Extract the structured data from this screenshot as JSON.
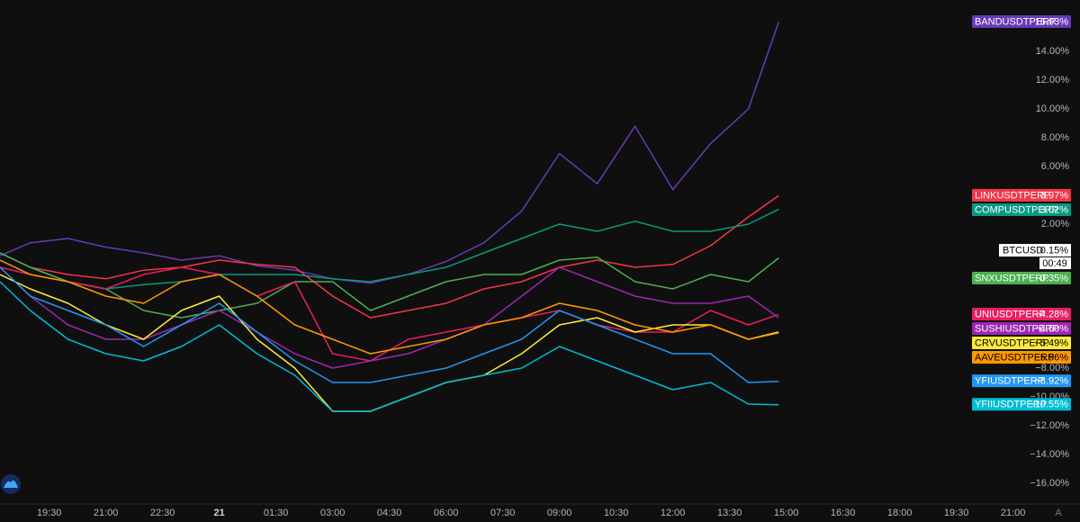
{
  "chart_data": {
    "type": "line",
    "x": [
      0.2,
      1,
      2,
      3,
      4,
      5,
      6,
      7,
      8,
      9,
      10,
      11,
      12,
      13,
      14,
      15,
      16,
      17,
      18,
      19,
      20,
      20.8
    ],
    "xlim": [
      0.2,
      28.77
    ],
    "ylim": [
      -17.44,
      17.56
    ],
    "xticks": [
      {
        "value": 1.5,
        "label": "19:30"
      },
      {
        "value": 3,
        "label": "21:00"
      },
      {
        "value": 4.5,
        "label": "22:30"
      },
      {
        "value": 6,
        "label": "21"
      },
      {
        "value": 7.5,
        "label": "01:30"
      },
      {
        "value": 9,
        "label": "03:00"
      },
      {
        "value": 10.5,
        "label": "04:30"
      },
      {
        "value": 12,
        "label": "06:00"
      },
      {
        "value": 13.5,
        "label": "07:30"
      },
      {
        "value": 15,
        "label": "09:00"
      },
      {
        "value": 16.5,
        "label": "10:30"
      },
      {
        "value": 18,
        "label": "12:00"
      },
      {
        "value": 19.5,
        "label": "13:30"
      },
      {
        "value": 21,
        "label": "15:00"
      },
      {
        "value": 22.5,
        "label": "16:30"
      },
      {
        "value": 24,
        "label": "18:00"
      },
      {
        "value": 25.5,
        "label": "19:30"
      },
      {
        "value": 27,
        "label": "21:00"
      }
    ],
    "yticks": [
      {
        "value": 14,
        "label": "14.00%"
      },
      {
        "value": 12,
        "label": "12.00%"
      },
      {
        "value": 10,
        "label": "10.00%"
      },
      {
        "value": 8,
        "label": "8.00%"
      },
      {
        "value": 6,
        "label": "6.00%"
      },
      {
        "value": 2,
        "label": "2.00%"
      },
      {
        "value": -8,
        "label": "−8.00%"
      },
      {
        "value": -10,
        "label": "−10.00%"
      },
      {
        "value": -12,
        "label": "−12.00%"
      },
      {
        "value": -14,
        "label": "−14.00%"
      },
      {
        "value": -16,
        "label": "−16.00%"
      }
    ],
    "series": [
      {
        "name": "BANDUSDTPERP",
        "color": "#673ab7",
        "end_label": "16.03%",
        "values": [
          -0.2,
          0.7,
          1.0,
          0.4,
          0,
          -0.5,
          -0.2,
          -0.9,
          -1.2,
          -1.8,
          -2.1,
          -1.5,
          -0.6,
          0.7,
          2.9,
          6.9,
          4.8,
          8.8,
          4.4,
          7.6,
          10.0,
          16.03
        ]
      },
      {
        "name": "LINKUSDTPERP",
        "color": "#f23645",
        "end_label": "3.97%",
        "values": [
          0,
          -1,
          -1.5,
          -1.8,
          -1.2,
          -1,
          -0.5,
          -0.8,
          -1,
          -3,
          -4.5,
          -4,
          -3.5,
          -2.5,
          -2,
          -1,
          -0.5,
          -1,
          -0.8,
          0.5,
          2.5,
          3.97
        ]
      },
      {
        "name": "COMPUSDTPERP",
        "color": "#089981",
        "end_label": "3.02%",
        "values": [
          0,
          -1,
          -2,
          -2.5,
          -2.2,
          -2,
          -1.5,
          -1.5,
          -1.5,
          -1.8,
          -2,
          -1.5,
          -1,
          0,
          1,
          2,
          1.5,
          2.2,
          1.5,
          1.5,
          2,
          3.02
        ]
      },
      {
        "name": "SNXUSDTPERP",
        "color": "#4caf50",
        "end_label": "−0.35%",
        "values": [
          0,
          -1,
          -2,
          -2.5,
          -4,
          -4.5,
          -4,
          -3.5,
          -2,
          -2,
          -4,
          -3,
          -2,
          -1.5,
          -1.5,
          -0.5,
          -0.3,
          -2,
          -2.5,
          -1.5,
          -2,
          -0.35
        ]
      },
      {
        "name": "UNIUSDTPERP",
        "color": "#e91e63",
        "end_label": "−4.28%",
        "values": [
          -1,
          -1.5,
          -2,
          -2.5,
          -1.5,
          -1,
          -1.5,
          -3,
          -2,
          -7,
          -7.5,
          -6,
          -5.5,
          -5,
          -4.5,
          -4,
          -5,
          -5.5,
          -5.5,
          -4,
          -5,
          -4.28
        ]
      },
      {
        "name": "SUSHIUSDTPERP",
        "color": "#9c27b0",
        "end_label": "−4.50%",
        "values": [
          -1,
          -3,
          -5,
          -6,
          -6,
          -5,
          -4,
          -5.5,
          -7,
          -8,
          -7.5,
          -7,
          -6,
          -5,
          -3,
          -1,
          -2,
          -3,
          -3.5,
          -3.5,
          -3,
          -4.5
        ]
      },
      {
        "name": "CRVUSDTPERP",
        "color": "#ffeb3b",
        "end_label": "−5.49%",
        "values": [
          -1.5,
          -2.5,
          -3.5,
          -5,
          -6,
          -4,
          -3,
          -6,
          -8,
          -11,
          -11,
          -10,
          -9,
          -8.5,
          -7,
          -5,
          -4.5,
          -5.5,
          -5,
          -5,
          -6,
          -5.49
        ]
      },
      {
        "name": "AAVEUSDTPERP",
        "color": "#ff9800",
        "end_label": "−5.56%",
        "values": [
          -0.5,
          -1.5,
          -2,
          -3,
          -3.5,
          -2,
          -1.5,
          -3,
          -5,
          -6,
          -7,
          -6.5,
          -6,
          -5,
          -4.5,
          -3.5,
          -4,
          -5,
          -5.5,
          -5,
          -6,
          -5.56
        ]
      },
      {
        "name": "YFIUSDTPERP",
        "color": "#2196f3",
        "end_label": "−8.92%",
        "values": [
          -1,
          -3,
          -4,
          -5,
          -6.5,
          -5,
          -3.5,
          -5.5,
          -7.5,
          -9,
          -9,
          -8.5,
          -8,
          -7,
          -6,
          -4,
          -5,
          -6,
          -7,
          -7,
          -9,
          -8.92
        ]
      },
      {
        "name": "YFIIUSDTPERP",
        "color": "#00bcd4",
        "end_label": "−10.55%",
        "values": [
          -2,
          -4,
          -6,
          -7,
          -7.5,
          -6.5,
          -5,
          -7,
          -8.5,
          -11,
          -11,
          -10,
          -9,
          -8.5,
          -8,
          -6.5,
          -7.5,
          -8.5,
          -9.5,
          -9,
          -10.5,
          -10.55
        ]
      }
    ],
    "main": {
      "name": "BTCUSD",
      "value": 0.15,
      "label": "0.15%",
      "countdown": "00:49"
    },
    "scale_button": "A"
  }
}
